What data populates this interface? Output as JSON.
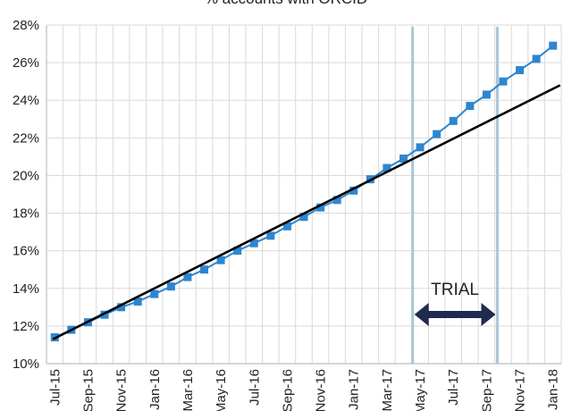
{
  "chart_data": {
    "type": "line",
    "title": "% accounts with ORCID",
    "xlabel": "",
    "ylabel": "",
    "ylim": [
      0.1,
      0.28
    ],
    "y_ticks": [
      "10%",
      "12%",
      "14%",
      "16%",
      "18%",
      "20%",
      "22%",
      "24%",
      "26%",
      "28%"
    ],
    "x_tick_labels": [
      "Jul-15",
      "Sep-15",
      "Nov-15",
      "Jan-16",
      "Mar-16",
      "May-16",
      "Jul-16",
      "Sep-16",
      "Nov-16",
      "Jan-17",
      "Mar-17",
      "May-17",
      "Jul-17",
      "Sep-17",
      "Nov-17",
      "Jan-18"
    ],
    "x": [
      "Jul-15",
      "Aug-15",
      "Sep-15",
      "Oct-15",
      "Nov-15",
      "Dec-15",
      "Jan-16",
      "Feb-16",
      "Mar-16",
      "Apr-16",
      "May-16",
      "Jun-16",
      "Jul-16",
      "Aug-16",
      "Sep-16",
      "Oct-16",
      "Nov-16",
      "Dec-16",
      "Jan-17",
      "Feb-17",
      "Mar-17",
      "Apr-17",
      "May-17",
      "Jun-17",
      "Jul-17",
      "Aug-17",
      "Sep-17",
      "Oct-17",
      "Nov-17",
      "Dec-17",
      "Jan-18"
    ],
    "series": [
      {
        "kind": "data",
        "color": "#2e86d0",
        "marker": "square",
        "values": [
          0.114,
          0.118,
          0.122,
          0.126,
          0.13,
          0.133,
          0.137,
          0.141,
          0.146,
          0.15,
          0.155,
          0.16,
          0.164,
          0.168,
          0.173,
          0.178,
          0.183,
          0.187,
          0.192,
          0.198,
          0.204,
          0.209,
          0.215,
          0.222,
          0.229,
          0.237,
          0.243,
          0.25,
          0.256,
          0.262,
          0.269
        ]
      },
      {
        "kind": "trend",
        "color": "#000000",
        "start": [
          "Jul-15",
          0.113
        ],
        "end": [
          "Jan-18",
          0.248
        ]
      }
    ],
    "trial_window": {
      "label": "TRIAL",
      "start": "May-17",
      "end": "Oct-17",
      "line_color": "#a9c6d8",
      "arrow_color": "#1f2a4d"
    },
    "grid": true,
    "legend": "none",
    "colors": {
      "grid": "#d9d9d9",
      "axis": "#bfbfbf"
    }
  }
}
